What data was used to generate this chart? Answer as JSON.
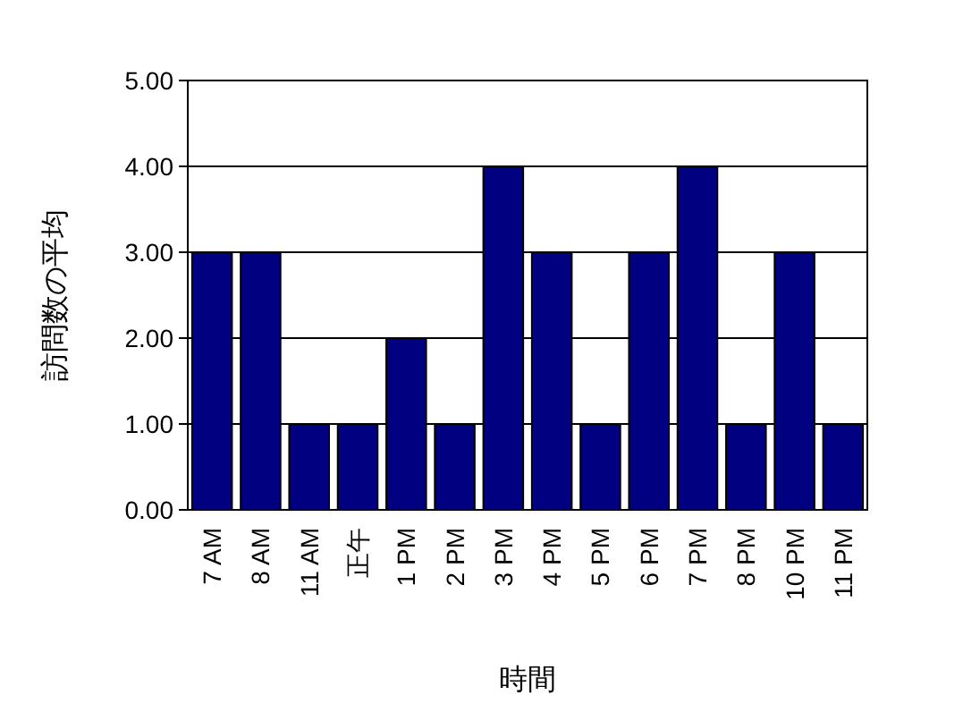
{
  "chart_data": {
    "type": "bar",
    "xlabel": "時間",
    "ylabel": "訪問数の平均",
    "categories": [
      "7 AM",
      "8 AM",
      "11 AM",
      "正午",
      "1 PM",
      "2 PM",
      "3 PM",
      "4 PM",
      "5 PM",
      "6 PM",
      "7 PM",
      "8 PM",
      "10 PM",
      "11 PM"
    ],
    "values": [
      3,
      3,
      1,
      1,
      2,
      1,
      4,
      3,
      1,
      3,
      4,
      1,
      3,
      1
    ],
    "color": "#000080",
    "ylim": [
      0,
      5
    ],
    "yticks": [
      {
        "value": 0,
        "label": "0.00"
      },
      {
        "value": 1,
        "label": "1.00"
      },
      {
        "value": 2,
        "label": "2.00"
      },
      {
        "value": 3,
        "label": "3.00"
      },
      {
        "value": 4,
        "label": "4.00"
      },
      {
        "value": 5,
        "label": "5.00"
      }
    ],
    "grid": "y"
  }
}
